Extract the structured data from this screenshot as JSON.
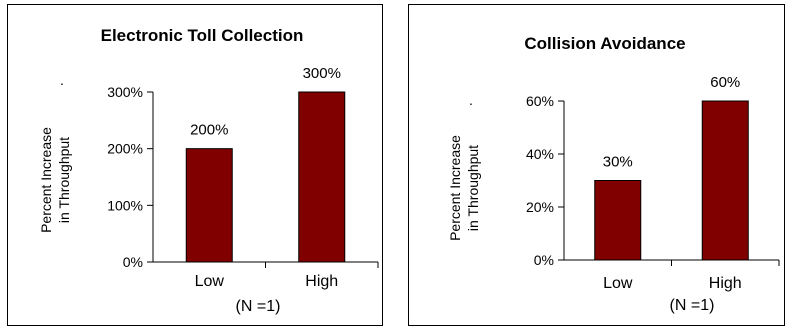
{
  "chart_data": [
    {
      "type": "bar",
      "title": "Electronic Toll Collection",
      "ylabel": "Percent Increase",
      "ylabel2": "in Throughput",
      "ylabel_mark": ".",
      "xnote": "(N =1)",
      "categories": [
        "Low",
        "High"
      ],
      "values": [
        200,
        300
      ],
      "value_labels": [
        "200%",
        "300%"
      ],
      "yticks": [
        0,
        100,
        200,
        300
      ],
      "ytick_labels": [
        "0%",
        "100%",
        "200%",
        "300%"
      ],
      "ylim": [
        0,
        300
      ],
      "grid": false,
      "bar_color": "#800000"
    },
    {
      "type": "bar",
      "title": "Collision Avoidance",
      "ylabel": "Percent Increase",
      "ylabel2": "in Throughput",
      "ylabel_mark": ".",
      "xnote": "(N =1)",
      "categories": [
        "Low",
        "High"
      ],
      "values": [
        30,
        60
      ],
      "value_labels": [
        "30%",
        "60%"
      ],
      "yticks": [
        0,
        20,
        40,
        60
      ],
      "ytick_labels": [
        "0%",
        "20%",
        "40%",
        "60%"
      ],
      "ylim": [
        0,
        60
      ],
      "grid": false,
      "bar_color": "#800000"
    }
  ]
}
